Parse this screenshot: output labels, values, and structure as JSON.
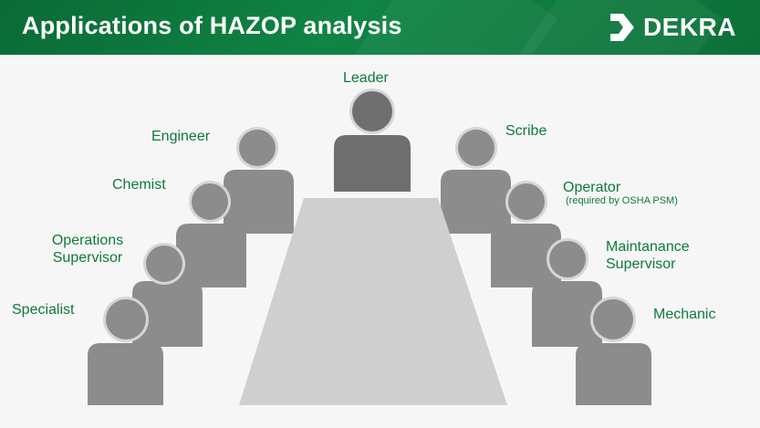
{
  "header": {
    "title": "Applications of HAZOP analysis",
    "logo_text": "DEKRA",
    "logo_icon": "dekra-chevron-logo"
  },
  "colors": {
    "header_green": "#0f8444",
    "label_green": "#0e7a3b",
    "leader_gray": "#6f6f6f",
    "member_gray": "#8c8c8c",
    "table_gray": "#cfcfcf"
  },
  "roles": {
    "leader": "Leader",
    "engineer": "Engineer",
    "chemist": "Chemist",
    "operations_supervisor_line1": "Operations",
    "operations_supervisor_line2": "Supervisor",
    "specialist": "Specialist",
    "scribe": "Scribe",
    "operator": "Operator",
    "operator_note": "(required by OSHA PSM)",
    "maintenance_supervisor_line1": "Maintanance",
    "maintenance_supervisor_line2": "Supervisor",
    "mechanic": "Mechanic"
  }
}
